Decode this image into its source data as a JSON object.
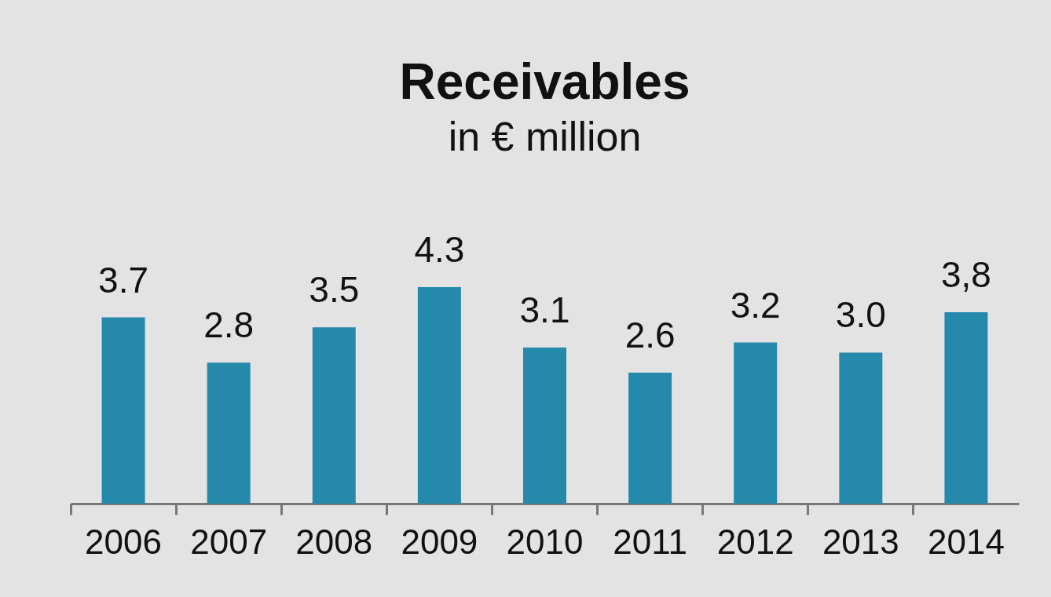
{
  "chart_data": {
    "type": "bar",
    "title": "Receivables",
    "subtitle": "in € million",
    "categories": [
      "2006",
      "2007",
      "2008",
      "2009",
      "2010",
      "2011",
      "2012",
      "2013",
      "2014"
    ],
    "values": [
      3.7,
      2.8,
      3.5,
      4.3,
      3.1,
      2.6,
      3.2,
      3.0,
      3.8
    ],
    "value_labels": [
      "3.7",
      "2.8",
      "3.5",
      "4.3",
      "3.1",
      "2.6",
      "3.2",
      "3.0",
      "3,8"
    ],
    "color": "#2589ab",
    "grid": false
  }
}
